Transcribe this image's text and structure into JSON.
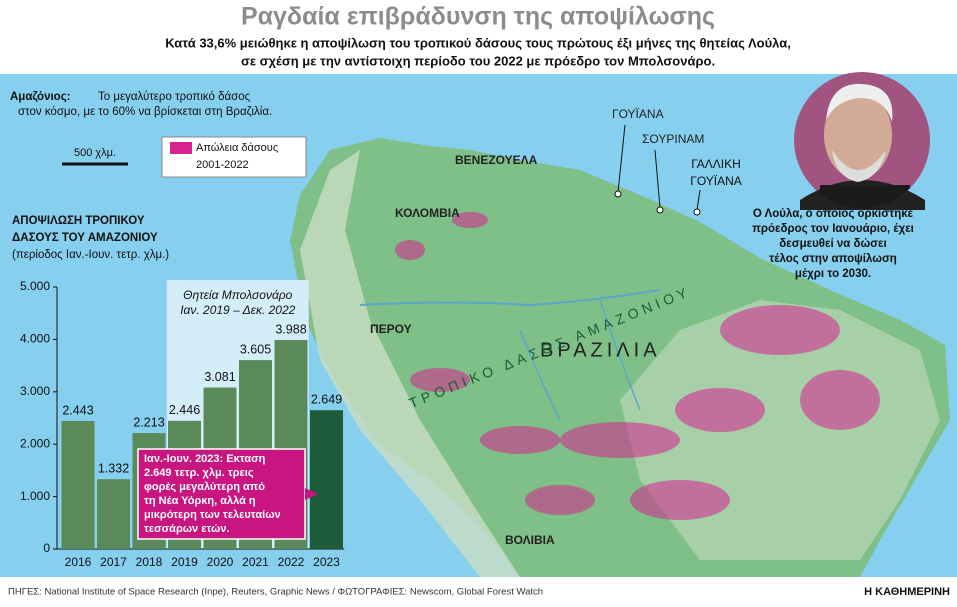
{
  "header": {
    "title": "Ραγδαία επιβράδυνση της αποψίλωσης",
    "subtitle": [
      "Κατά 33,6% μειώθηκε η αποψίλωση του τροπικού δάσους τους πρώτους έξι μήνες της θητείας Λούλα,",
      "σε σχέση με την αντίστοιχη περίοδο του 2022 με πρόεδρο τον Μπολσονάρο."
    ]
  },
  "map": {
    "intro_label": "Αμαζόνιος:",
    "intro": [
      "Το μεγαλύτερο τροπικό δάσος",
      "στον κόσμο, με το 60% να βρίσκεται στη Βραζιλία."
    ],
    "scale": "500 χλμ.",
    "legend": [
      "Απώλεια δάσους",
      "2001-2022"
    ],
    "legend_color": "#d6238f",
    "countries": {
      "venezuela": "ΒΕΝΕΖΟΥΕΛΑ",
      "colombia": "ΚΟΛΟΜΒΙΑ",
      "peru": "ΠΕΡΟΥ",
      "brazil": "ΒΡΑΖΙΛΙΑ",
      "bolivia": "ΒΟΛΙΒΙΑ",
      "guyana": "ΓΟΥΪΑΝΑ",
      "suriname": "ΣΟΥΡΙΝΑΜ",
      "french_guiana": [
        "ΓΑΛΛΙΚΗ",
        "ΓΟΥΪΑΝΑ"
      ]
    },
    "forest": "ΤΡΟΠΙΚΟ ΔΑΣΟΣ ΑΜΑΖΟΝΙΟΥ"
  },
  "photo_caption": [
    "Ο Λούλα, ο οποίος ορκίστηκε",
    "πρόεδρος τον Ιανουάριο, έχει",
    "δεσμευθεί να δώσει",
    "τέλος στην αποψίλωση",
    "μέχρι το 2030."
  ],
  "chart_data": {
    "type": "bar",
    "title": [
      "ΑΠΟΨΙΛΩΣΗ ΤΡΟΠΙΚΟΥ",
      "ΔΑΣΟΥΣ ΤΟΥ ΑΜΑΖΟΝΙΟΥ"
    ],
    "subtitle": "(περίοδος Ιαν.-Ιουν. τετρ. χλμ.)",
    "categories": [
      "2016",
      "2017",
      "2018",
      "2019",
      "2020",
      "2021",
      "2022",
      "2023"
    ],
    "values": [
      2443,
      1332,
      2213,
      2446,
      3081,
      3605,
      3988,
      2649
    ],
    "value_labels": [
      "2.443",
      "1.332",
      "2.213",
      "2.446",
      "3.081",
      "3.605",
      "3.988",
      "2.649"
    ],
    "colors": [
      "#5b8a5a",
      "#5b8a5a",
      "#5b8a5a",
      "#5b8a5a",
      "#5b8a5a",
      "#5b8a5a",
      "#5b8a5a",
      "#1d5b3b"
    ],
    "ylim": [
      0,
      5000
    ],
    "yticks": [
      0,
      {
        "value": 1000,
        "label": "1.000"
      },
      {
        "value": 2000,
        "label": "2.000"
      },
      {
        "value": 3000,
        "label": "3.000"
      },
      {
        "value": 4000,
        "label": "4.000"
      },
      {
        "value": 5000,
        "label": "5.000"
      }
    ],
    "highlight": {
      "categories": [
        "2019",
        "2022"
      ],
      "label": [
        "Θητεία Μπολσονάρο",
        "Ιαν. 2019 – Δεκ. 2022"
      ]
    },
    "annotation": [
      "Ιαν.-Ιουν. 2023: Εκταση",
      "2.649 τετρ. χλμ. τρεις",
      "φορές μεγαλύτερη από",
      "τη Νέα Υόρκη, αλλά η",
      "μικρότερη των τελευταίων",
      "τεσσάρων ετών."
    ]
  },
  "footer": {
    "sources": "ΠΗΓΕΣ: National Institute of Space Research (Inpe), Reuters, Graphic News / ΦΩΤΟΓΡΑΦΙΕΣ: Newscom, Global Forest Watch",
    "brand": "Η ΚΑΘΗΜΕΡΙΝΗ"
  }
}
